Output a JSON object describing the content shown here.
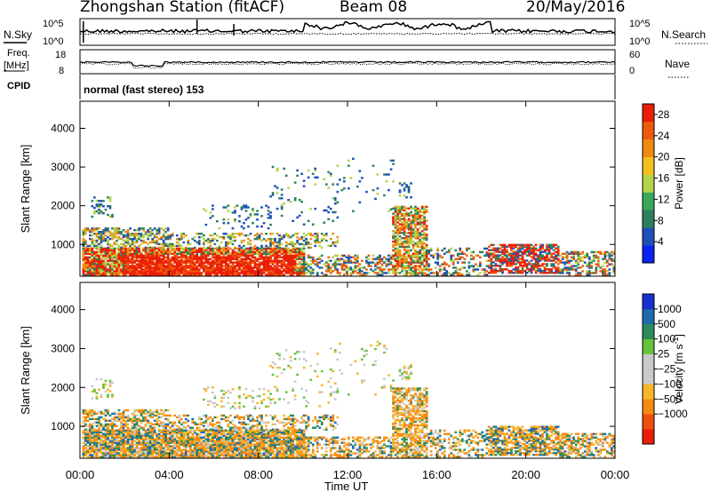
{
  "header": {
    "title": "Zhongshan Station (fitACF)",
    "beam": "Beam 08",
    "date": "20/May/2016"
  },
  "side_labels": {
    "nsky": "N.Sky",
    "nsearch": "N.Search",
    "freq_top": "Freq.",
    "freq_unit": "[MHz]",
    "nave": "Nave",
    "cpid": "CPID",
    "cpid_value": "normal (fast stereo) 153"
  },
  "noise_axis": {
    "left": [
      "10^5",
      "10^0"
    ],
    "right": [
      "10^5",
      "10^0"
    ]
  },
  "freq_axis": {
    "left": [
      "18",
      "8"
    ],
    "right": [
      "60",
      "0"
    ]
  },
  "colors": {
    "power": [
      "#0a22f2",
      "#1f4fb8",
      "#2e7f5e",
      "#3aa65a",
      "#b3d34a",
      "#f5c01d",
      "#f08a12",
      "#ee5a0c",
      "#ea1e08"
    ],
    "velocity": [
      "#ea1e08",
      "#ee4f0e",
      "#f58a12",
      "#f6b62a",
      "#c9c9c9",
      "#c9c9c9",
      "#62c23c",
      "#2f8a5a",
      "#1f6aaa",
      "#1a2fd2"
    ]
  },
  "chart_data": [
    {
      "type": "heatmap",
      "name": "power",
      "xlabel": "Time UT",
      "ylabel": "Slant Range [km]",
      "xlim": [
        0,
        24
      ],
      "ylim": [
        180,
        4700
      ],
      "x_ticks": [
        "00:00",
        "04:00",
        "08:00",
        "12:00",
        "16:00",
        "20:00",
        "00:00"
      ],
      "y_ticks": [
        1000,
        2000,
        3000,
        4000
      ],
      "colorbar_label": "Power [dB]",
      "colorbar_ticks": [
        4,
        8,
        12,
        16,
        20,
        24,
        28
      ],
      "colorbar_range": [
        0,
        30
      ]
    },
    {
      "type": "heatmap",
      "name": "velocity",
      "xlabel": "Time UT",
      "ylabel": "Slant Range [km]",
      "xlim": [
        0,
        24
      ],
      "ylim": [
        180,
        4700
      ],
      "x_ticks": [
        "00:00",
        "04:00",
        "08:00",
        "12:00",
        "16:00",
        "20:00",
        "00:00"
      ],
      "y_ticks": [
        1000,
        2000,
        3000,
        4000
      ],
      "colorbar_label": "Velocity [m s",
      "colorbar_label_exp": "-1",
      "colorbar_label_end": "]",
      "colorbar_ticks": [
        "1000",
        "500",
        "100",
        "25",
        "−25",
        "−100",
        "−500",
        "−1000"
      ]
    }
  ]
}
